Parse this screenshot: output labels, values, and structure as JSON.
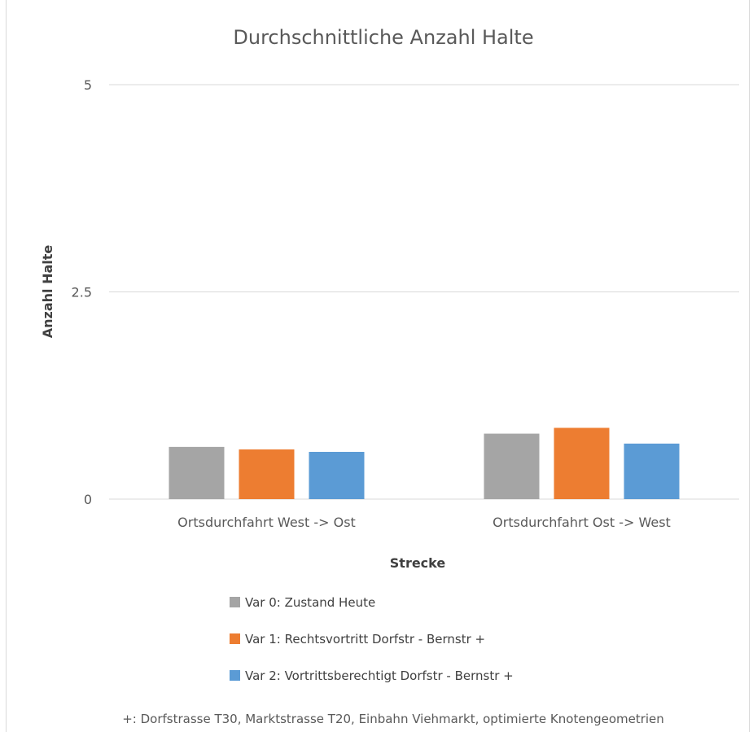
{
  "chart_data": {
    "type": "bar",
    "title": "Durchschnittliche Anzahl Halte",
    "xlabel": "Strecke",
    "ylabel": "Anzahl Halte",
    "ylim": [
      0,
      5
    ],
    "yticks": [
      {
        "value": 0,
        "label": "0"
      },
      {
        "value": 2.5,
        "label": "2.5"
      },
      {
        "value": 5,
        "label": "5"
      }
    ],
    "grid": true,
    "legend_position": "bottom",
    "categories": [
      "Ortsdurchfahrt West -> Ost",
      "Ortsdurchfahrt Ost -> West"
    ],
    "series": [
      {
        "name": "Var 0: Zustand Heute",
        "color": "#a5a5a5",
        "values": [
          0.63,
          0.79
        ]
      },
      {
        "name": "Var 1: Rechtsvortritt Dorfstr - Bernstr +",
        "color": "#ed7d31",
        "values": [
          0.6,
          0.86
        ]
      },
      {
        "name": "Var 2: Vortrittsberechtigt Dorfstr - Bernstr +",
        "color": "#5b9bd5",
        "values": [
          0.57,
          0.67
        ]
      }
    ],
    "footnote": "+: Dorfstrasse T30, Marktstrasse T20, Einbahn Viehmarkt, optimierte Knotengeometrien"
  }
}
